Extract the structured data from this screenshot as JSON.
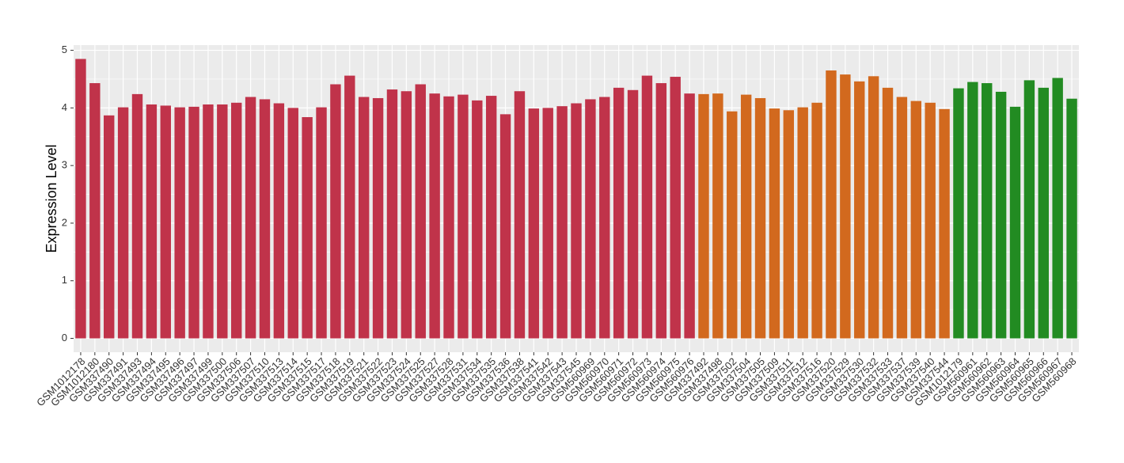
{
  "chart_data": {
    "type": "bar",
    "y_label": "Expression Level",
    "categories": [
      "GSM1012178",
      "GSM1012180",
      "GSM337490",
      "GSM337491",
      "GSM337493",
      "GSM337494",
      "GSM337495",
      "GSM337496",
      "GSM337497",
      "GSM337499",
      "GSM337500",
      "GSM337506",
      "GSM337507",
      "GSM337510",
      "GSM337513",
      "GSM337514",
      "GSM337515",
      "GSM337517",
      "GSM337518",
      "GSM337519",
      "GSM337521",
      "GSM337522",
      "GSM337523",
      "GSM337524",
      "GSM337525",
      "GSM337527",
      "GSM337528",
      "GSM337531",
      "GSM337534",
      "GSM337535",
      "GSM337536",
      "GSM337538",
      "GSM337541",
      "GSM337542",
      "GSM337543",
      "GSM337545",
      "GSM560969",
      "GSM560970",
      "GSM560971",
      "GSM560972",
      "GSM560973",
      "GSM560974",
      "GSM560975",
      "GSM560976",
      "GSM337492",
      "GSM337498",
      "GSM337502",
      "GSM337504",
      "GSM337505",
      "GSM337509",
      "GSM337511",
      "GSM337512",
      "GSM337516",
      "GSM337520",
      "GSM337529",
      "GSM337530",
      "GSM337532",
      "GSM337533",
      "GSM337537",
      "GSM337539",
      "GSM337540",
      "GSM337544",
      "GSM1012179",
      "GSM560961",
      "GSM560962",
      "GSM560963",
      "GSM560964",
      "GSM560965",
      "GSM560966",
      "GSM560967",
      "GSM560968"
    ],
    "values": [
      4.85,
      4.43,
      3.87,
      4.01,
      4.24,
      4.06,
      4.04,
      4.01,
      4.02,
      4.06,
      4.06,
      4.09,
      4.19,
      4.15,
      4.08,
      4.0,
      3.84,
      4.01,
      4.41,
      4.56,
      4.19,
      4.17,
      4.32,
      4.29,
      4.41,
      4.25,
      4.2,
      4.23,
      4.13,
      4.21,
      3.89,
      4.29,
      3.99,
      4.0,
      4.03,
      4.08,
      4.15,
      4.19,
      4.35,
      4.31,
      4.56,
      4.43,
      4.54,
      4.25,
      4.24,
      4.25,
      3.94,
      4.23,
      4.17,
      3.99,
      3.96,
      4.01,
      4.09,
      4.65,
      4.58,
      4.46,
      4.55,
      4.35,
      4.19,
      4.12,
      4.09,
      3.98,
      4.34,
      4.45,
      4.43,
      4.28,
      4.02,
      4.48,
      4.35,
      4.52,
      4.16
    ],
    "colors": [
      "#c0334a",
      "#c0334a",
      "#c0334a",
      "#c0334a",
      "#c0334a",
      "#c0334a",
      "#c0334a",
      "#c0334a",
      "#c0334a",
      "#c0334a",
      "#c0334a",
      "#c0334a",
      "#c0334a",
      "#c0334a",
      "#c0334a",
      "#c0334a",
      "#c0334a",
      "#c0334a",
      "#c0334a",
      "#c0334a",
      "#c0334a",
      "#c0334a",
      "#c0334a",
      "#c0334a",
      "#c0334a",
      "#c0334a",
      "#c0334a",
      "#c0334a",
      "#c0334a",
      "#c0334a",
      "#c0334a",
      "#c0334a",
      "#c0334a",
      "#c0334a",
      "#c0334a",
      "#c0334a",
      "#c0334a",
      "#c0334a",
      "#c0334a",
      "#c0334a",
      "#c0334a",
      "#c0334a",
      "#c0334a",
      "#c0334a",
      "#d2691e",
      "#d2691e",
      "#d2691e",
      "#d2691e",
      "#d2691e",
      "#d2691e",
      "#d2691e",
      "#d2691e",
      "#d2691e",
      "#d2691e",
      "#d2691e",
      "#d2691e",
      "#d2691e",
      "#d2691e",
      "#d2691e",
      "#d2691e",
      "#d2691e",
      "#d2691e",
      "#228b22",
      "#228b22",
      "#228b22",
      "#228b22",
      "#228b22",
      "#228b22",
      "#228b22",
      "#228b22",
      "#228b22"
    ],
    "ylim": [
      -0.24,
      5.09
    ],
    "yticks": [
      0,
      1,
      2,
      3,
      4,
      5
    ],
    "grid": true
  }
}
